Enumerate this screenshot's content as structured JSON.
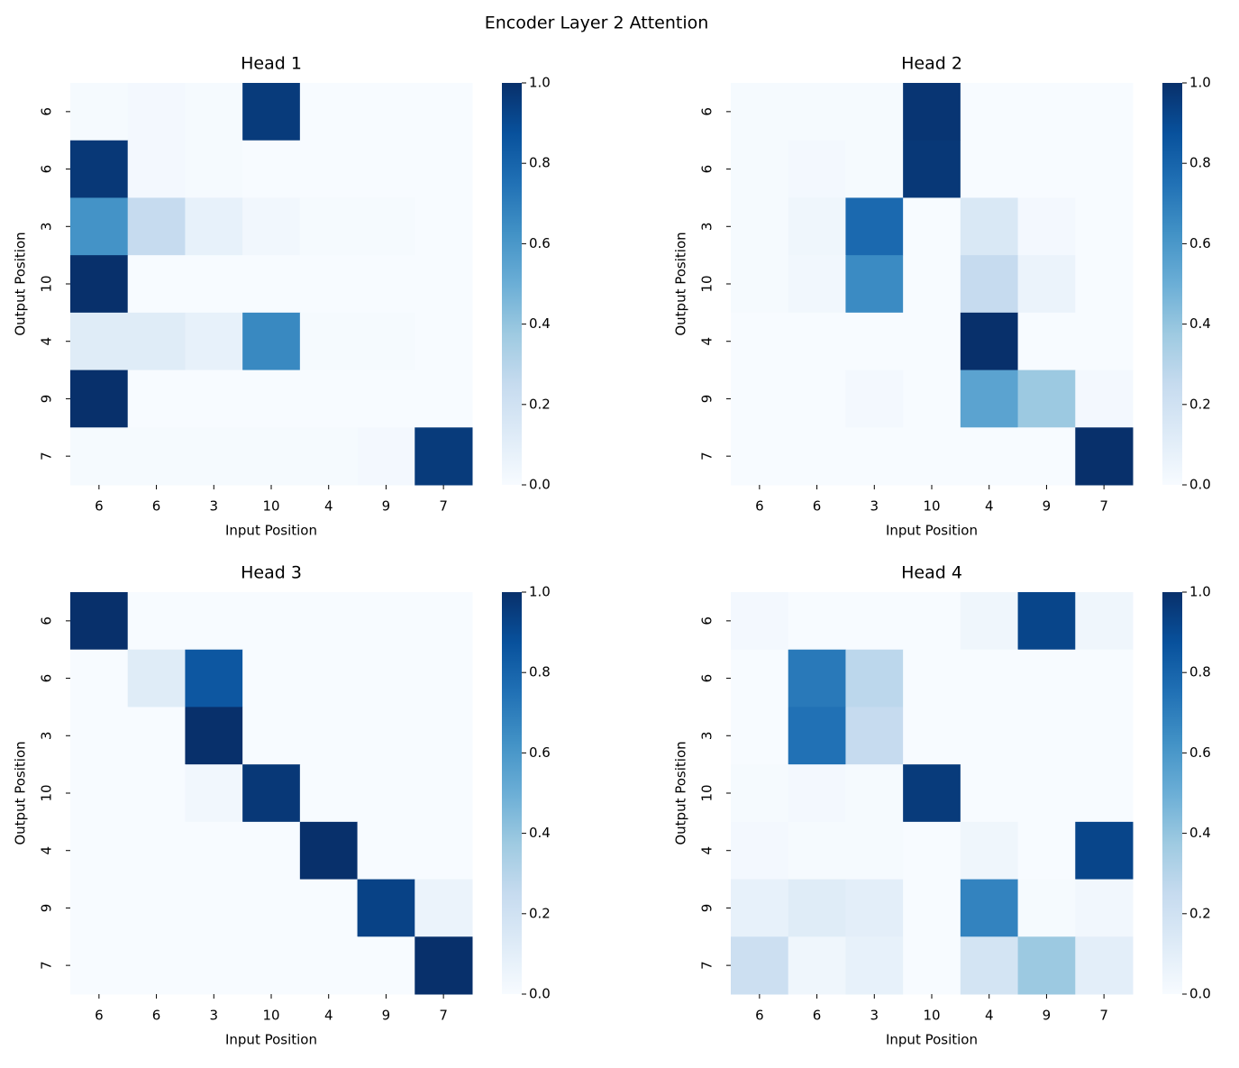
{
  "title": "Encoder Layer 2 Attention",
  "chart_data": [
    {
      "type": "heatmap",
      "title": "Head 1",
      "xlabel": "Input Position",
      "ylabel": "Output Position",
      "x": [
        "6",
        "6",
        "3",
        "10",
        "4",
        "9",
        "7"
      ],
      "y": [
        "6",
        "6",
        "3",
        "10",
        "4",
        "9",
        "7"
      ],
      "cmap": "Blues",
      "values": [
        [
          0.01,
          0.02,
          0.01,
          0.96,
          0,
          0,
          0
        ],
        [
          0.97,
          0.02,
          0.01,
          0,
          0,
          0,
          0
        ],
        [
          0.62,
          0.25,
          0.08,
          0.03,
          0.01,
          0.01,
          0
        ],
        [
          1,
          0,
          0,
          0,
          0,
          0,
          0
        ],
        [
          0.12,
          0.12,
          0.08,
          0.66,
          0.01,
          0.01,
          0
        ],
        [
          1,
          0,
          0,
          0,
          0,
          0,
          0
        ],
        [
          0.01,
          0.01,
          0.01,
          0.01,
          0.01,
          0.02,
          0.96
        ]
      ],
      "clim": [
        0,
        1
      ],
      "cticks": [
        {
          "value": 0,
          "label": "0.0"
        },
        0.2,
        0.4,
        0.6,
        0.8,
        {
          "value": 1,
          "label": "1.0"
        }
      ]
    },
    {
      "type": "heatmap",
      "title": "Head 2",
      "xlabel": "Input Position",
      "ylabel": "Output Position",
      "x": [
        "6",
        "6",
        "3",
        "10",
        "4",
        "9",
        "7"
      ],
      "y": [
        "6",
        "6",
        "3",
        "10",
        "4",
        "9",
        "7"
      ],
      "cmap": "Blues",
      "values": [
        [
          0.01,
          0.01,
          0.01,
          0.98,
          0,
          0,
          0
        ],
        [
          0.01,
          0.02,
          0.01,
          0.97,
          0,
          0,
          0
        ],
        [
          0.01,
          0.04,
          0.78,
          0,
          0.15,
          0.02,
          0
        ],
        [
          0.01,
          0.03,
          0.65,
          0,
          0.25,
          0.06,
          0
        ],
        [
          0,
          0,
          0,
          0,
          1,
          0,
          0
        ],
        [
          0,
          0,
          0.02,
          0,
          0.55,
          0.38,
          0.02
        ],
        [
          0,
          0,
          0,
          0,
          0,
          0,
          1
        ]
      ],
      "clim": [
        0,
        1
      ],
      "cticks": [
        {
          "value": 0,
          "label": "0.0"
        },
        0.2,
        0.4,
        0.6,
        0.8,
        {
          "value": 1,
          "label": "1.0"
        }
      ]
    },
    {
      "type": "heatmap",
      "title": "Head 3",
      "xlabel": "Input Position",
      "ylabel": "Output Position",
      "x": [
        "6",
        "6",
        "3",
        "10",
        "4",
        "9",
        "7"
      ],
      "y": [
        "6",
        "6",
        "3",
        "10",
        "4",
        "9",
        "7"
      ],
      "cmap": "Blues",
      "values": [
        [
          1,
          0,
          0,
          0,
          0,
          0,
          0
        ],
        [
          0,
          0.12,
          0.85,
          0,
          0,
          0,
          0
        ],
        [
          0,
          0,
          1,
          0,
          0,
          0,
          0
        ],
        [
          0,
          0,
          0.03,
          0.97,
          0,
          0,
          0
        ],
        [
          0,
          0,
          0,
          0,
          1,
          0,
          0
        ],
        [
          0,
          0,
          0,
          0,
          0,
          0.93,
          0.06
        ],
        [
          0,
          0,
          0,
          0,
          0,
          0,
          1
        ]
      ],
      "clim": [
        0,
        1
      ],
      "cticks": [
        {
          "value": 0,
          "label": "0.0"
        },
        0.2,
        0.4,
        0.6,
        0.8,
        {
          "value": 1,
          "label": "1.0"
        }
      ]
    },
    {
      "type": "heatmap",
      "title": "Head 4",
      "xlabel": "Input Position",
      "ylabel": "Output Position",
      "x": [
        "6",
        "6",
        "3",
        "10",
        "4",
        "9",
        "7"
      ],
      "y": [
        "6",
        "6",
        "3",
        "10",
        "4",
        "9",
        "7"
      ],
      "cmap": "Blues",
      "values": [
        [
          0.02,
          0,
          0,
          0,
          0.04,
          0.92,
          0.04
        ],
        [
          0,
          0.72,
          0.28,
          0,
          0,
          0,
          0
        ],
        [
          0,
          0.75,
          0.25,
          0,
          0,
          0,
          0
        ],
        [
          0.01,
          0.02,
          0.01,
          0.96,
          0,
          0,
          0
        ],
        [
          0.02,
          0.01,
          0.01,
          0,
          0.04,
          0,
          0.92
        ],
        [
          0.08,
          0.12,
          0.1,
          0,
          0.68,
          0.01,
          0.03
        ],
        [
          0.22,
          0.04,
          0.08,
          0,
          0.18,
          0.38,
          0.1
        ]
      ],
      "clim": [
        0,
        1
      ],
      "cticks": [
        {
          "value": 0,
          "label": "0.0"
        },
        0.2,
        0.4,
        0.6,
        0.8,
        {
          "value": 1,
          "label": "1.0"
        }
      ]
    }
  ]
}
